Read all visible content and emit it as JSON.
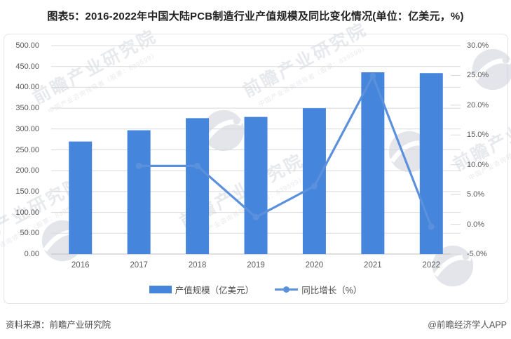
{
  "title": "图表5：2016-2022年中国大陆PCB制造行业产值规模及同比变化情况(单位：亿美元，%)",
  "source": "资料来源：前瞻产业研究院",
  "credit": "@前瞻经济学人APP",
  "watermark": {
    "main": "前瞻产业研究院",
    "sub": "中国产业咨询领导者（股票：839599）"
  },
  "legend": [
    {
      "label": "产值规模（亿美元）",
      "type": "bar"
    },
    {
      "label": "同比增长（%）",
      "type": "line"
    }
  ],
  "colors": {
    "bar": "#4585DC",
    "line": "#5B90DC",
    "grid": "#D9D9D9",
    "axis": "#BFBFBF",
    "label": "#595959",
    "title": "#222222",
    "watermark": "#B9BDC9"
  },
  "chart_data": {
    "type": "bar",
    "subtype": "combo bar+line, dual axis",
    "title": "2016-2022年中国大陆PCB制造行业产值规模及同比变化情况",
    "categories": [
      "2016",
      "2017",
      "2018",
      "2019",
      "2020",
      "2021",
      "2022"
    ],
    "series": [
      {
        "name": "产值规模（亿美元）",
        "type": "bar",
        "axis": "left",
        "values": [
          270,
          297,
          326,
          329,
          350,
          436,
          434
        ]
      },
      {
        "name": "同比增长（%）",
        "type": "line",
        "axis": "right",
        "values": [
          null,
          9.8,
          9.8,
          1.2,
          6.4,
          24.9,
          -0.4
        ]
      }
    ],
    "left_axis": {
      "min": 0,
      "max": 500,
      "step": 50,
      "tick_labels": [
        "500.00",
        "450.00",
        "400.00",
        "350.00",
        "300.00",
        "250.00",
        "200.00",
        "150.00",
        "100.00",
        "50.00",
        "0.00"
      ]
    },
    "right_axis": {
      "min": -5,
      "max": 30,
      "step": 5,
      "tick_labels": [
        "30.0%",
        "25.0%",
        "20.0%",
        "15.0%",
        "10.0%",
        "5.0%",
        "0.0%",
        "-5.0%"
      ]
    },
    "grid": "horizontal only, primary axis",
    "legend_position": "bottom-center"
  }
}
